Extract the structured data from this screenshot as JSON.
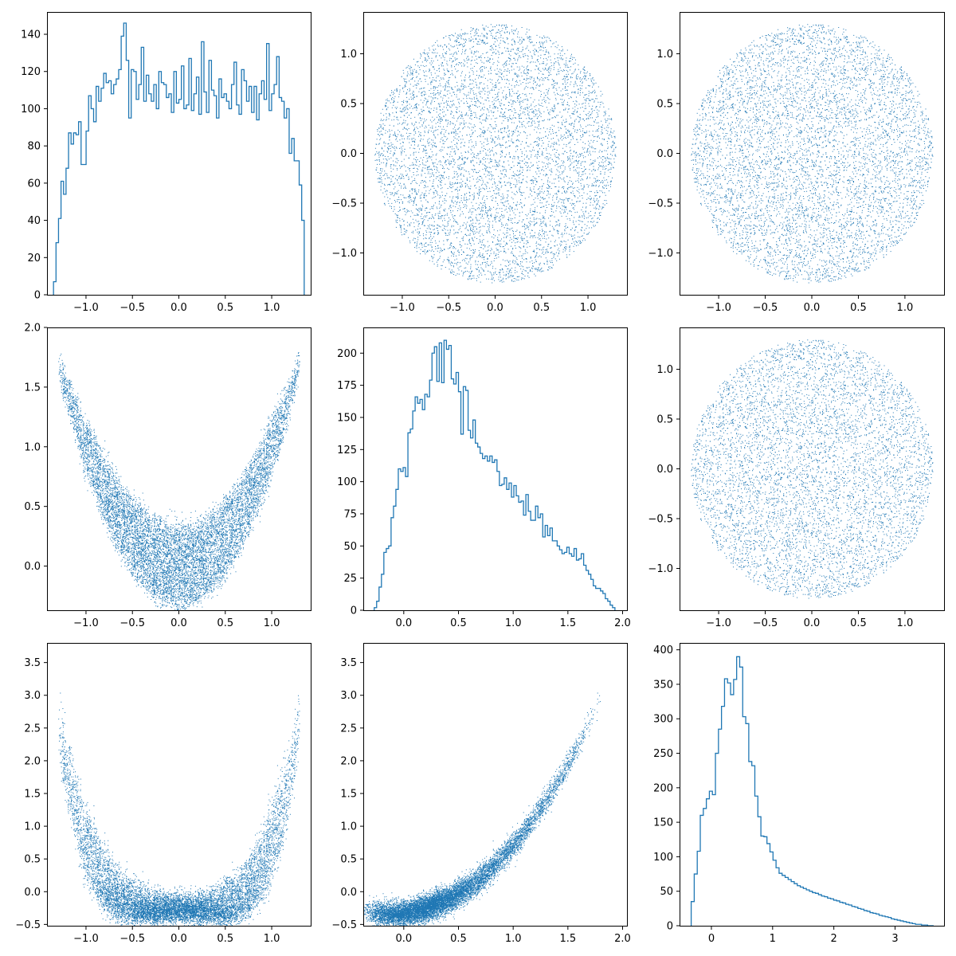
{
  "figure": {
    "layout": "3x3 corner plot",
    "series_color": "#1f77b4"
  },
  "chart_data": [
    {
      "panel": "1-1",
      "type": "histogram",
      "xlim": [
        -1.42,
        1.42
      ],
      "ylim": [
        0,
        152
      ],
      "xticks": [
        "-1.0",
        "-0.5",
        "0.0",
        "0.5",
        "1.0"
      ],
      "xtick_values": [
        -1.0,
        -0.5,
        0.0,
        0.5,
        1.0
      ],
      "yticks": [
        "0",
        "20",
        "40",
        "60",
        "80",
        "100",
        "120",
        "140"
      ],
      "ytick_values": [
        0,
        20,
        40,
        60,
        80,
        100,
        120,
        140
      ],
      "bin_range": [
        -1.35,
        1.35
      ],
      "counts": [
        7,
        28,
        41,
        61,
        54,
        68,
        87,
        81,
        87,
        86,
        93,
        70,
        70,
        88,
        107,
        100,
        93,
        112,
        104,
        111,
        119,
        114,
        115,
        108,
        113,
        116,
        121,
        139,
        146,
        126,
        95,
        121,
        120,
        105,
        113,
        133,
        104,
        118,
        108,
        104,
        113,
        100,
        120,
        114,
        113,
        106,
        108,
        98,
        120,
        103,
        105,
        123,
        100,
        102,
        127,
        99,
        108,
        117,
        97,
        136,
        109,
        98,
        126,
        110,
        107,
        95,
        116,
        106,
        108,
        104,
        100,
        113,
        125,
        102,
        97,
        121,
        115,
        104,
        112,
        98,
        112,
        94,
        108,
        115,
        105,
        135,
        99,
        108,
        113,
        128,
        106,
        104,
        95,
        100,
        76,
        84,
        72,
        72,
        59,
        40
      ]
    },
    {
      "panel": "1-2",
      "type": "scatter",
      "xlim": [
        -1.42,
        1.42
      ],
      "ylim": [
        -1.42,
        1.42
      ],
      "xticks": [
        "-1.0",
        "-0.5",
        "0.0",
        "0.5",
        "1.0"
      ],
      "xtick_values": [
        -1.0,
        -0.5,
        0.0,
        0.5,
        1.0
      ],
      "yticks": [
        "-1.0",
        "-0.5",
        "0.0",
        "0.5",
        "1.0"
      ],
      "ytick_values": [
        -1.0,
        -0.5,
        0.0,
        0.5,
        1.0
      ],
      "point_count": 10000,
      "model": {
        "x": "uniform disk radius 1.3",
        "y": "uniform disk radius 1.3"
      }
    },
    {
      "panel": "1-3",
      "type": "scatter",
      "xlim": [
        -1.42,
        1.42
      ],
      "ylim": [
        -1.42,
        1.42
      ],
      "xticks": [
        "-1.0",
        "-0.5",
        "0.0",
        "0.5",
        "1.0"
      ],
      "xtick_values": [
        -1.0,
        -0.5,
        0.0,
        0.5,
        1.0
      ],
      "yticks": [
        "-1.0",
        "-0.5",
        "0.0",
        "0.5",
        "1.0"
      ],
      "ytick_values": [
        -1.0,
        -0.5,
        0.0,
        0.5,
        1.0
      ],
      "point_count": 10000,
      "model": {
        "x": "uniform disk radius 1.3",
        "y": "uniform disk radius 1.3"
      }
    },
    {
      "panel": "2-1",
      "type": "scatter",
      "xlim": [
        -1.42,
        1.42
      ],
      "ylim": [
        -0.37,
        2.0
      ],
      "xticks": [
        "-1.0",
        "-0.5",
        "0.0",
        "0.5",
        "1.0"
      ],
      "xtick_values": [
        -1.0,
        -0.5,
        0.0,
        0.5,
        1.0
      ],
      "yticks": [
        "0.0",
        "0.5",
        "1.0",
        "1.5",
        "2.0"
      ],
      "ytick_values": [
        0.0,
        0.5,
        1.0,
        1.5,
        2.0
      ],
      "point_count": 10000,
      "model": {
        "x": "uniform disk radius 1.3",
        "y": "x^2 + y"
      }
    },
    {
      "panel": "2-2",
      "type": "histogram",
      "xlim": [
        -0.37,
        2.04
      ],
      "ylim": [
        0,
        220
      ],
      "xticks": [
        "0.0",
        "0.5",
        "1.0",
        "1.5",
        "2.0"
      ],
      "xtick_values": [
        0.0,
        0.5,
        1.0,
        1.5,
        2.0
      ],
      "yticks": [
        "0",
        "25",
        "50",
        "75",
        "100",
        "125",
        "150",
        "175",
        "200"
      ],
      "ytick_values": [
        0,
        25,
        50,
        75,
        100,
        125,
        150,
        175,
        200
      ],
      "bin_range": [
        -0.27,
        1.93
      ],
      "counts": [
        2,
        7,
        18,
        28,
        45,
        48,
        50,
        72,
        81,
        94,
        110,
        108,
        111,
        104,
        138,
        141,
        155,
        166,
        161,
        164,
        156,
        168,
        166,
        179,
        200,
        205,
        178,
        208,
        177,
        210,
        203,
        206,
        180,
        176,
        185,
        170,
        137,
        174,
        171,
        140,
        134,
        148,
        130,
        127,
        122,
        118,
        120,
        116,
        120,
        115,
        117,
        108,
        97,
        98,
        103,
        94,
        99,
        88,
        97,
        89,
        84,
        85,
        74,
        90,
        77,
        70,
        70,
        81,
        72,
        75,
        57,
        66,
        58,
        64,
        54,
        54,
        50,
        47,
        44,
        45,
        49,
        44,
        42,
        48,
        39,
        40,
        44,
        35,
        31,
        28,
        24,
        19,
        17,
        17,
        15,
        13,
        9,
        7,
        4,
        2
      ]
    },
    {
      "panel": "2-3",
      "type": "scatter",
      "xlim": [
        -1.42,
        1.42
      ],
      "ylim": [
        -1.42,
        1.42
      ],
      "xticks": [
        "-1.0",
        "-0.5",
        "0.0",
        "0.5",
        "1.0"
      ],
      "xtick_values": [
        -1.0,
        -0.5,
        0.0,
        0.5,
        1.0
      ],
      "yticks": [
        "-1.0",
        "-0.5",
        "0.0",
        "0.5",
        "1.0"
      ],
      "ytick_values": [
        -1.0,
        -0.5,
        0.0,
        0.5,
        1.0
      ],
      "point_count": 10000,
      "model": {
        "x": "uniform disk radius 1.3",
        "y": "uniform disk radius 1.3"
      }
    },
    {
      "panel": "3-1",
      "type": "scatter",
      "xlim": [
        -1.42,
        1.42
      ],
      "ylim": [
        -0.52,
        3.8
      ],
      "xticks": [
        "-1.0",
        "-0.5",
        "0.0",
        "0.5",
        "1.0"
      ],
      "xtick_values": [
        -1.0,
        -0.5,
        0.0,
        0.5,
        1.0
      ],
      "yticks": [
        "-0.5",
        "0.0",
        "0.5",
        "1.0",
        "1.5",
        "2.0",
        "2.5",
        "3.0",
        "3.5"
      ],
      "ytick_values": [
        -0.5,
        0.0,
        0.5,
        1.0,
        1.5,
        2.0,
        2.5,
        3.0,
        3.5
      ],
      "point_count": 10000,
      "model": {
        "x": "uniform disk radius 1.3",
        "y": "(x^2 + y)^2 - 0.3 + noise"
      }
    },
    {
      "panel": "3-2",
      "type": "scatter",
      "xlim": [
        -0.37,
        2.04
      ],
      "ylim": [
        -0.52,
        3.8
      ],
      "xticks": [
        "0.0",
        "0.5",
        "1.0",
        "1.5",
        "2.0"
      ],
      "xtick_values": [
        0.0,
        0.5,
        1.0,
        1.5,
        2.0
      ],
      "yticks": [
        "-0.5",
        "0.0",
        "0.5",
        "1.0",
        "1.5",
        "2.0",
        "2.5",
        "3.0",
        "3.5"
      ],
      "ytick_values": [
        -0.5,
        0.0,
        0.5,
        1.0,
        1.5,
        2.0,
        2.5,
        3.0,
        3.5
      ],
      "point_count": 10000,
      "model": {
        "x": "x^2 + y",
        "y": "(x^2 + y)^2 - 0.3 + noise"
      }
    },
    {
      "panel": "3-3",
      "type": "histogram",
      "xlim": [
        -0.52,
        3.8
      ],
      "ylim": [
        0,
        410
      ],
      "xticks": [
        "0",
        "1",
        "2",
        "3"
      ],
      "xtick_values": [
        0,
        1,
        2,
        3
      ],
      "yticks": [
        "0",
        "50",
        "100",
        "150",
        "200",
        "250",
        "300",
        "350",
        "400"
      ],
      "ytick_values": [
        0,
        50,
        100,
        150,
        200,
        250,
        300,
        350,
        400
      ],
      "bin_range": [
        -0.33,
        3.63
      ],
      "counts": [
        35,
        75,
        108,
        160,
        170,
        184,
        195,
        190,
        250,
        285,
        318,
        358,
        352,
        335,
        357,
        390,
        375,
        303,
        293,
        238,
        232,
        188,
        158,
        130,
        129,
        119,
        107,
        95,
        84,
        76,
        73,
        70,
        67,
        64,
        61,
        58,
        56,
        54,
        52,
        50,
        48,
        47,
        45,
        43,
        42,
        40,
        39,
        37,
        36,
        34,
        33,
        31,
        30,
        28,
        27,
        25,
        24,
        22,
        21,
        19,
        18,
        17,
        15,
        14,
        13,
        12,
        10,
        9,
        8,
        7,
        6,
        5,
        4,
        3,
        2,
        2,
        1,
        1,
        0,
        0
      ]
    }
  ]
}
